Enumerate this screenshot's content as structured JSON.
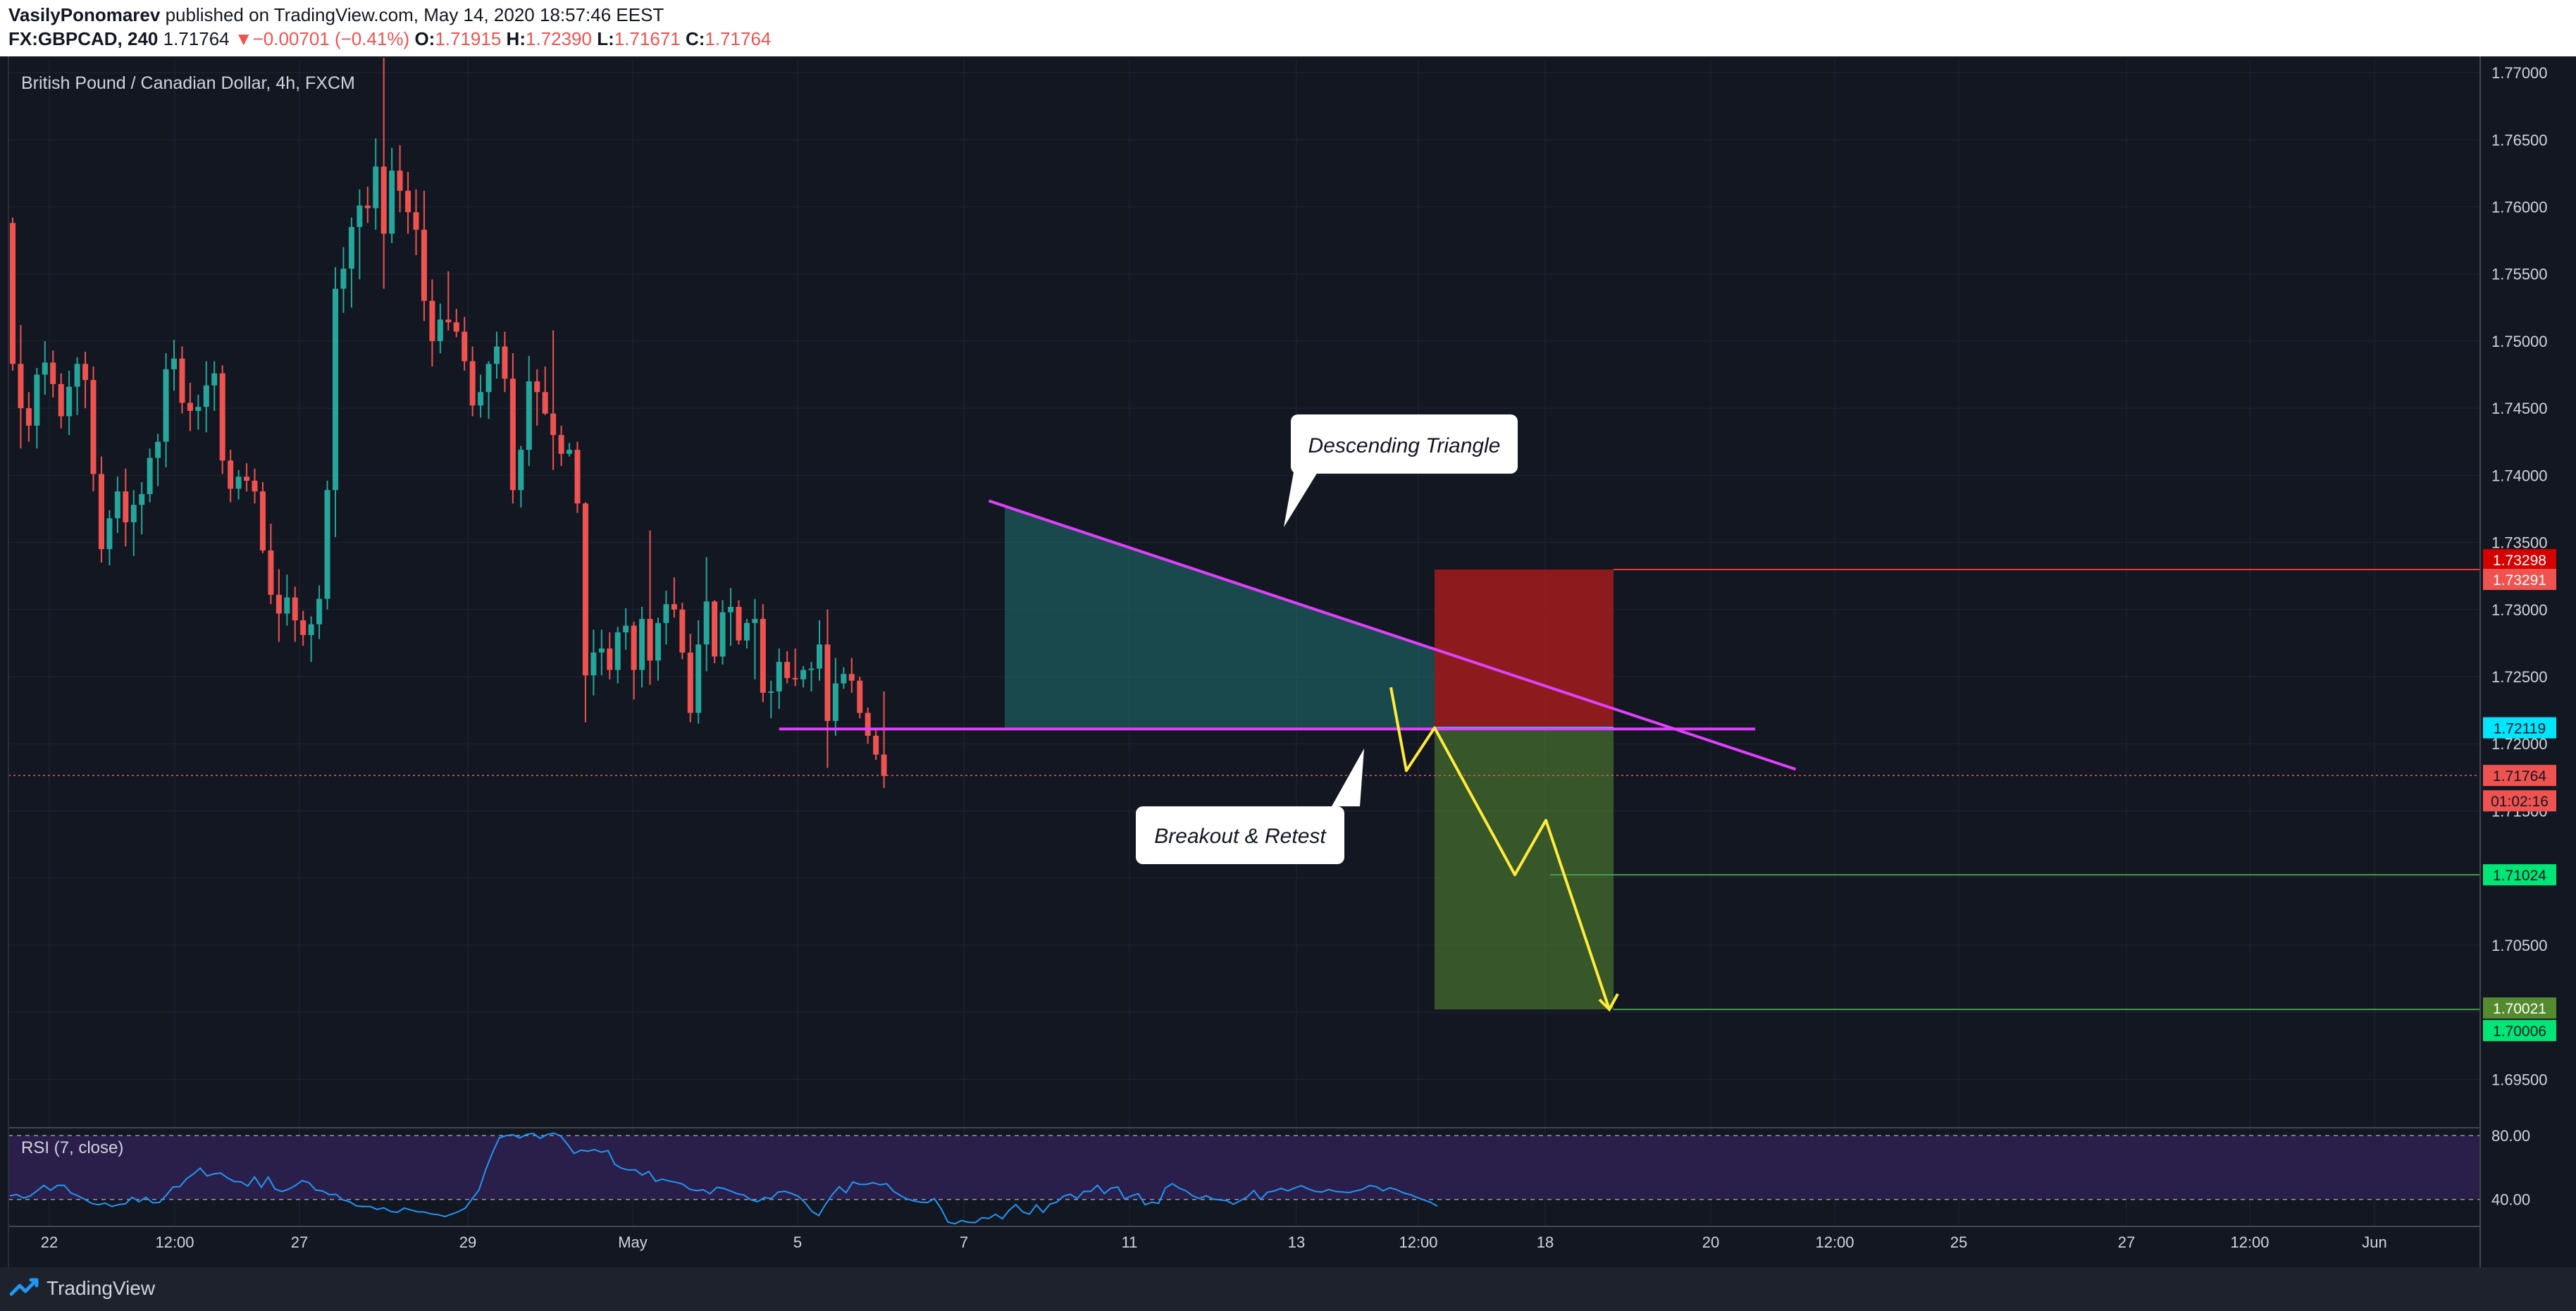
{
  "header": {
    "author": "VasilyPonomarev",
    "published": "published on TradingView.com, May 14, 2020 18:57:46 EEST",
    "symbol": "FX:GBPCAD, 240",
    "last": "1.71764",
    "change_arrow": "▼",
    "change": "−0.00701 (−0.41%)",
    "o_label": "O:",
    "o": "1.71915",
    "h_label": "H:",
    "h": "1.72390",
    "l_label": "L:",
    "l": "1.71671",
    "c_label": "C:",
    "c": "1.71764"
  },
  "footer": {
    "brand": "TradingView"
  },
  "colors": {
    "background": "#131722",
    "up": "#26a69a",
    "down": "#ef5350",
    "triangle_line": "#e040fb",
    "projection": "#ffeb3b",
    "stop_zone": "#b71c1c",
    "target_zone": "#558b2f",
    "rsi_line": "#2196f3",
    "rsi_band": "#2a1f4a"
  },
  "chart_data": {
    "type": "candlestick",
    "title": "British Pound / Canadian Dollar, 4h, FXCM",
    "y_ticks": [
      "1.77000",
      "1.76500",
      "1.76000",
      "1.75500",
      "1.75000",
      "1.74500",
      "1.74000",
      "1.73500",
      "1.73000",
      "1.72500",
      "1.72000",
      "1.71500",
      "1.71000",
      "1.70500",
      "1.70000",
      "1.69500"
    ],
    "ylim": [
      1.6915,
      1.771
    ],
    "x_ticks": [
      "22",
      "12:00",
      "27",
      "29",
      "May",
      "5",
      "7",
      "11",
      "13",
      "12:00",
      "18",
      "20",
      "12:00",
      "25",
      "27",
      "12:00",
      "Jun"
    ],
    "candles": [
      [
        1.7588,
        1.7592,
        1.7478,
        1.7483
      ],
      [
        1.7483,
        1.7512,
        1.742,
        1.745
      ],
      [
        1.745,
        1.7462,
        1.7425,
        1.7437
      ],
      [
        1.7437,
        1.748,
        1.742,
        1.7475
      ],
      [
        1.7475,
        1.75,
        1.746,
        1.7484
      ],
      [
        1.7484,
        1.7493,
        1.7458,
        1.7468
      ],
      [
        1.7468,
        1.7476,
        1.7435,
        1.7444
      ],
      [
        1.7444,
        1.7478,
        1.743,
        1.7466
      ],
      [
        1.7466,
        1.7488,
        1.7445,
        1.7483
      ],
      [
        1.7483,
        1.7492,
        1.745,
        1.7471
      ],
      [
        1.7471,
        1.7481,
        1.7388,
        1.7401
      ],
      [
        1.7401,
        1.7414,
        1.7335,
        1.7345
      ],
      [
        1.7345,
        1.7374,
        1.7333,
        1.7368
      ],
      [
        1.7368,
        1.7399,
        1.7357,
        1.7388
      ],
      [
        1.7388,
        1.7405,
        1.7347,
        1.7365
      ],
      [
        1.7365,
        1.7389,
        1.734,
        1.7378
      ],
      [
        1.7378,
        1.7395,
        1.7356,
        1.7386
      ],
      [
        1.7386,
        1.742,
        1.738,
        1.7413
      ],
      [
        1.7413,
        1.7431,
        1.7392,
        1.7425
      ],
      [
        1.7425,
        1.7491,
        1.7406,
        1.7479
      ],
      [
        1.7479,
        1.7501,
        1.7463,
        1.7487
      ],
      [
        1.7487,
        1.7496,
        1.7446,
        1.7454
      ],
      [
        1.7454,
        1.7469,
        1.7433,
        1.7448
      ],
      [
        1.7448,
        1.746,
        1.7434,
        1.7451
      ],
      [
        1.7451,
        1.7485,
        1.7432,
        1.7467
      ],
      [
        1.7467,
        1.7485,
        1.7448,
        1.7476
      ],
      [
        1.7476,
        1.7482,
        1.7401,
        1.7411
      ],
      [
        1.7411,
        1.7419,
        1.738,
        1.739
      ],
      [
        1.739,
        1.7404,
        1.7382,
        1.7399
      ],
      [
        1.7399,
        1.7409,
        1.7388,
        1.7396
      ],
      [
        1.7396,
        1.7405,
        1.7379,
        1.7388
      ],
      [
        1.7388,
        1.7395,
        1.7342,
        1.7344
      ],
      [
        1.7344,
        1.7364,
        1.7304,
        1.7311
      ],
      [
        1.7311,
        1.733,
        1.7276,
        1.7297
      ],
      [
        1.7297,
        1.7326,
        1.7288,
        1.7309
      ],
      [
        1.7309,
        1.7317,
        1.7276,
        1.7292
      ],
      [
        1.7292,
        1.7299,
        1.7273,
        1.7281
      ],
      [
        1.7281,
        1.7295,
        1.7261,
        1.7289
      ],
      [
        1.7289,
        1.7318,
        1.7278,
        1.7308
      ],
      [
        1.7308,
        1.7396,
        1.73,
        1.7389
      ],
      [
        1.7389,
        1.7555,
        1.7354,
        1.7539
      ],
      [
        1.7539,
        1.757,
        1.7521,
        1.7554
      ],
      [
        1.7554,
        1.7592,
        1.7525,
        1.7585
      ],
      [
        1.7585,
        1.7613,
        1.7546,
        1.7601
      ],
      [
        1.7601,
        1.7615,
        1.7588,
        1.7599
      ],
      [
        1.7599,
        1.7651,
        1.7583,
        1.763
      ],
      [
        1.763,
        1.7711,
        1.7539,
        1.758
      ],
      [
        1.758,
        1.7644,
        1.7573,
        1.7627
      ],
      [
        1.7627,
        1.7646,
        1.7596,
        1.7612
      ],
      [
        1.7612,
        1.7626,
        1.758,
        1.7596
      ],
      [
        1.7596,
        1.7613,
        1.7564,
        1.7583
      ],
      [
        1.7583,
        1.7612,
        1.7515,
        1.753
      ],
      [
        1.753,
        1.7546,
        1.7481,
        1.75
      ],
      [
        1.75,
        1.7528,
        1.7491,
        1.7516
      ],
      [
        1.7516,
        1.7552,
        1.7508,
        1.7514
      ],
      [
        1.7514,
        1.7524,
        1.7503,
        1.7507
      ],
      [
        1.7507,
        1.7518,
        1.7478,
        1.7485
      ],
      [
        1.7485,
        1.7496,
        1.7444,
        1.7452
      ],
      [
        1.7452,
        1.7475,
        1.7443,
        1.7462
      ],
      [
        1.7462,
        1.7485,
        1.7442,
        1.7483
      ],
      [
        1.7483,
        1.7507,
        1.7472,
        1.7496
      ],
      [
        1.7496,
        1.7507,
        1.7462,
        1.7472
      ],
      [
        1.7472,
        1.7491,
        1.7379,
        1.7389
      ],
      [
        1.7389,
        1.7422,
        1.7376,
        1.7419
      ],
      [
        1.7419,
        1.7489,
        1.7407,
        1.747
      ],
      [
        1.747,
        1.7479,
        1.7437,
        1.7462
      ],
      [
        1.7462,
        1.7481,
        1.7445,
        1.7446
      ],
      [
        1.7446,
        1.7508,
        1.7404,
        1.743
      ],
      [
        1.743,
        1.7437,
        1.7407,
        1.7416
      ],
      [
        1.7416,
        1.7424,
        1.7414,
        1.7419
      ],
      [
        1.7419,
        1.7425,
        1.7372,
        1.7379
      ],
      [
        1.7379,
        1.738,
        1.7216,
        1.7251
      ],
      [
        1.7251,
        1.7285,
        1.7236,
        1.7268
      ],
      [
        1.7268,
        1.7285,
        1.7251,
        1.7271
      ],
      [
        1.7271,
        1.7283,
        1.7248,
        1.7255
      ],
      [
        1.7255,
        1.7287,
        1.7245,
        1.7283
      ],
      [
        1.7283,
        1.7301,
        1.727,
        1.7288
      ],
      [
        1.7288,
        1.7291,
        1.7233,
        1.7255
      ],
      [
        1.7255,
        1.7302,
        1.7242,
        1.7293
      ],
      [
        1.7293,
        1.7359,
        1.7244,
        1.7262
      ],
      [
        1.7262,
        1.7294,
        1.7247,
        1.729
      ],
      [
        1.729,
        1.7314,
        1.7274,
        1.7304
      ],
      [
        1.7304,
        1.7324,
        1.7294,
        1.73
      ],
      [
        1.73,
        1.7305,
        1.7263,
        1.7268
      ],
      [
        1.7268,
        1.7282,
        1.7216,
        1.7223
      ],
      [
        1.7223,
        1.7292,
        1.7215,
        1.7274
      ],
      [
        1.7274,
        1.7339,
        1.7254,
        1.7306
      ],
      [
        1.7306,
        1.7307,
        1.726,
        1.7265
      ],
      [
        1.7265,
        1.7307,
        1.7259,
        1.7298
      ],
      [
        1.7298,
        1.7316,
        1.7273,
        1.7302
      ],
      [
        1.7302,
        1.7307,
        1.7274,
        1.7277
      ],
      [
        1.7277,
        1.7293,
        1.7271,
        1.729
      ],
      [
        1.729,
        1.7308,
        1.7248,
        1.7293
      ],
      [
        1.7293,
        1.7304,
        1.7231,
        1.7238
      ],
      [
        1.7238,
        1.7247,
        1.7219,
        1.7239
      ],
      [
        1.7239,
        1.7271,
        1.7226,
        1.7261
      ],
      [
        1.7261,
        1.7269,
        1.7245,
        1.7249
      ],
      [
        1.7249,
        1.7271,
        1.7243,
        1.7248
      ],
      [
        1.7248,
        1.7258,
        1.7242,
        1.7255
      ],
      [
        1.7255,
        1.7261,
        1.7239,
        1.7256
      ],
      [
        1.7256,
        1.7292,
        1.7247,
        1.7274
      ],
      [
        1.7274,
        1.73,
        1.7182,
        1.7217
      ],
      [
        1.7217,
        1.7264,
        1.7206,
        1.7245
      ],
      [
        1.7245,
        1.7257,
        1.7241,
        1.7252
      ],
      [
        1.7252,
        1.7264,
        1.7238,
        1.7247
      ],
      [
        1.7247,
        1.725,
        1.7219,
        1.7223
      ],
      [
        1.7223,
        1.7227,
        1.72,
        1.7206
      ],
      [
        1.7206,
        1.7211,
        1.7188,
        1.7192
      ],
      [
        1.7192,
        1.7239,
        1.7167,
        1.7176
      ]
    ],
    "rsi": {
      "label": "RSI (7, close)",
      "levels": [
        80,
        40
      ],
      "tick_labels": [
        "80.00",
        "40.00"
      ],
      "ylim": [
        24,
        84
      ],
      "values": [
        42.2,
        43.1,
        40.9,
        42.2,
        45.4,
        48.8,
        45.8,
        48.8,
        48.9,
        44.0,
        42.3,
        40.1,
        37.6,
        36.7,
        37.7,
        35.6,
        36.8,
        37.3,
        41.4,
        38.5,
        41.4,
        37.9,
        38.1,
        42.6,
        47.8,
        48.0,
        53.0,
        55.9,
        59.6,
        54.7,
        56.0,
        56.5,
        53.5,
        51.2,
        51.0,
        48.4,
        54.1,
        47.6,
        54.0,
        46.5,
        45.0,
        46.4,
        48.7,
        51.8,
        50.5,
        45.9,
        45.3,
        43.0,
        43.2,
        39.7,
        38.5,
        35.9,
        35.6,
        35.6,
        33.8,
        34.7,
        32.5,
        31.9,
        34.6,
        33.4,
        32.3,
        32.1,
        30.9,
        30.5,
        29.3,
        30.8,
        32.4,
        34.6,
        40.3,
        45.9,
        58.6,
        69.3,
        78.5,
        80.0,
        80.5,
        78.5,
        80.7,
        81.3,
        78.2,
        80.6,
        81.5,
        79.8,
        74.7,
        68.8,
        70.8,
        70.2,
        71.2,
        69.6,
        70.6,
        62.0,
        59.5,
        58.4,
        58.6,
        55.3,
        57.5,
        51.4,
        52.7,
        51.5,
        50.8,
        49.5,
        46.4,
        45.5,
        46.1,
        43.6,
        47.6,
        46.9,
        45.3,
        43.6,
        42.8,
        39.8,
        38.6,
        41.2,
        40.5,
        44.6,
        45.1,
        43.7,
        41.9,
        37.9,
        32.5,
        29.9,
        37.0,
        43.1,
        47.9,
        44.2,
        50.9,
        49.5,
        49.4,
        50.5,
        49.2,
        49.8,
        45.1,
        42.5,
        40.3,
        39.1,
        38.3,
        38.1,
        40.5,
        34.2,
        25.8,
        24.8,
        26.8,
        25.7,
        25.5,
        28.6,
        28.1,
        30.7,
        27.9,
        33.2,
        36.8,
        32.2,
        30.8,
        36.6,
        31.9,
        37.0,
        38.3,
        42.1,
        43.3,
        40.6,
        45.1,
        45.0,
        48.9,
        43.7,
        47.1,
        47.8,
        40.3,
        42.3,
        43.6,
        36.6,
        38.3,
        37.6,
        47.2,
        49.9,
        47.1,
        45.4,
        42.3,
        40.6,
        42.3,
        40.2,
        39.7,
        39.2,
        37.0,
        39.2,
        41.5,
        45.6,
        40.0,
        44.5,
        45.3,
        47.0,
        45.4,
        47.2,
        48.6,
        46.6,
        45.1,
        44.6,
        46.3,
        45.0,
        44.7,
        44.3,
        45.3,
        46.4,
        48.7,
        48.0,
        45.4,
        47.3,
        46.1,
        44.1,
        43.0,
        41.3,
        39.7,
        38.2,
        35.8
      ]
    },
    "annotations": {
      "callout_triangle": "Descending Triangle",
      "callout_breakout": "Breakout & Retest",
      "triangle_upper_line": [
        [
          121,
          1.7381
        ],
        [
          221,
          1.7181
        ]
      ],
      "triangle_base_line": [
        [
          95,
          1.7211
        ],
        [
          216,
          1.7211
        ]
      ],
      "stop_loss": 1.73298,
      "entry": 1.72119,
      "take_profit_1": 1.71024,
      "take_profit_2": 1.70021,
      "current_price": 1.71764
    },
    "price_labels": {
      "stop_a": "1.73298",
      "stop_b": "1.73291",
      "entry": "1.72119",
      "current": "1.71764",
      "countdown": "01:02:16",
      "tp1": "1.71024",
      "tp2_a": "1.70021",
      "tp2_b": "1.70006"
    }
  }
}
